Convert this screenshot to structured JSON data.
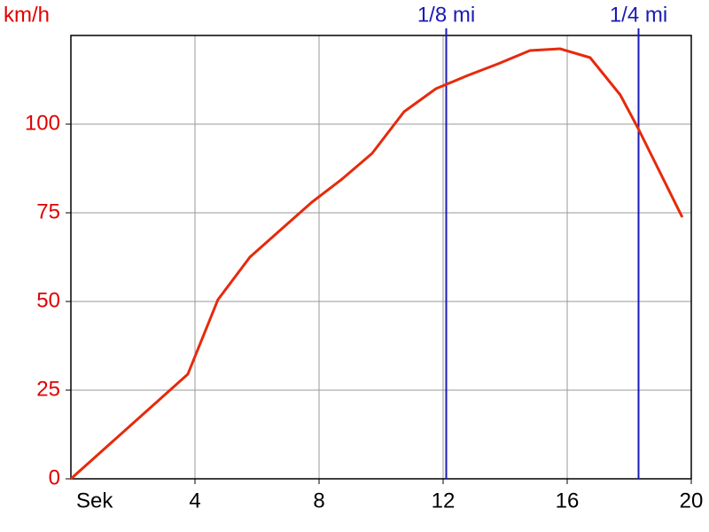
{
  "chart_data": {
    "type": "line",
    "y_label": "km/h",
    "x_label": "Sek",
    "x": [
      0,
      3.77,
      4.74,
      5.77,
      6.8,
      7.77,
      8.74,
      9.71,
      10.74,
      11.77,
      12.8,
      13.77,
      14.8,
      15.77,
      16.74,
      17.71,
      18.29,
      19.71
    ],
    "values": [
      0,
      29.5,
      50.5,
      62.5,
      70.5,
      78,
      84.5,
      91.75,
      103.5,
      110,
      113.75,
      117,
      120.75,
      121.25,
      118.75,
      108.25,
      98.75,
      73.75
    ],
    "color": "#e62a0c",
    "xlim": [
      0,
      20
    ],
    "xticks": [
      4,
      8,
      12,
      16,
      20
    ],
    "ylim": [
      0,
      125
    ],
    "yticks": [
      0,
      25,
      50,
      75,
      100
    ],
    "grid": true,
    "y_label_color": "#e00000",
    "markers": [
      {
        "label": "1/8 mi",
        "x": 12.1
      },
      {
        "label": "1/4 mi",
        "x": 18.3
      }
    ],
    "marker_color": "#1a1ab4"
  }
}
